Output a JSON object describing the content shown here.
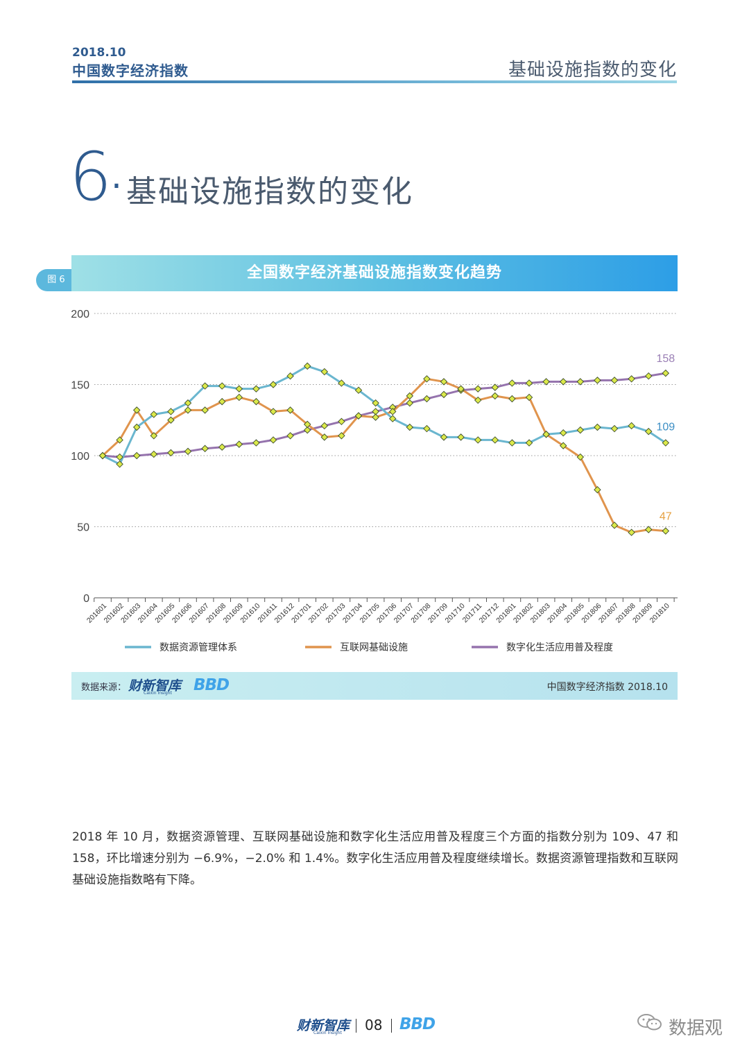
{
  "header": {
    "date": "2018.10",
    "brand": "中国数字经济指数",
    "section_title": "基础设施指数的变化"
  },
  "section": {
    "number": "6",
    "dot": ".",
    "title": "基础设施指数的变化"
  },
  "figure": {
    "tag": "图 6",
    "title": "全国数字经济基础设施指数变化趋势"
  },
  "chart_data": {
    "type": "line",
    "title": "全国数字经济基础设施指数变化趋势",
    "xlabel": "",
    "ylabel": "",
    "ylim": [
      0,
      200
    ],
    "yticks": [
      "0",
      "50",
      "100",
      "150",
      "200"
    ],
    "grid": "horizontal dotted",
    "categories": [
      "201601",
      "201602",
      "201603",
      "201604",
      "201605",
      "201606",
      "201607",
      "201608",
      "201609",
      "201610",
      "201611",
      "201612",
      "201701",
      "201702",
      "201703",
      "201704",
      "201705",
      "201706",
      "201707",
      "201708",
      "201709",
      "201710",
      "201711",
      "201712",
      "201801",
      "201802",
      "201803",
      "201804",
      "201805",
      "201806",
      "201807",
      "201808",
      "201809",
      "201810"
    ],
    "series": [
      {
        "name": "数据资源管理体系",
        "color": "#6ab6cf",
        "values": [
          100,
          94,
          120,
          129,
          131,
          137,
          149,
          149,
          147,
          147,
          150,
          156,
          163,
          159,
          151,
          146,
          137,
          126,
          120,
          119,
          113,
          113,
          111,
          111,
          109,
          109,
          115,
          116,
          118,
          120,
          119,
          121,
          117,
          109
        ],
        "end_label": "109",
        "end_label_color": "#3d8fc5"
      },
      {
        "name": "互联网基础设施",
        "color": "#e0944d",
        "values": [
          100,
          111,
          132,
          114,
          125,
          132,
          132,
          138,
          141,
          138,
          131,
          132,
          122,
          113,
          114,
          128,
          127,
          131,
          142,
          154,
          152,
          147,
          139,
          142,
          140,
          141,
          115,
          107,
          99,
          76,
          51,
          46,
          48,
          47
        ],
        "end_label": "47",
        "end_label_color": "#e6a040"
      },
      {
        "name": "数字化生活应用普及程度",
        "color": "#9573ad",
        "values": [
          100,
          99,
          100,
          101,
          102,
          103,
          105,
          106,
          108,
          109,
          111,
          114,
          118,
          121,
          124,
          128,
          131,
          134,
          137,
          140,
          143,
          146,
          147,
          148,
          151,
          151,
          152,
          152,
          152,
          153,
          153,
          154,
          156,
          158
        ],
        "end_label": "158",
        "end_label_color": "#9a7fb5"
      }
    ],
    "marker_color": "#dbe94a",
    "legend_position": "bottom"
  },
  "source": {
    "label": "数据来源：",
    "logo_text": "财新智库",
    "logo_sub": "Caixin Insight",
    "bbd_logo": "BBD",
    "right_text": "中国数字经济指数 2018.10"
  },
  "paragraph": "2018 年 10 月，数据资源管理、互联网基础设施和数字化生活应用普及程度三个方面的指数分别为 109、47 和 158，环比增速分别为 −6.9%，−2.0% 和 1.4%。数字化生活应用普及程度继续增长。数据资源管理指数和互联网基础设施指数略有下降。",
  "footer": {
    "logo_text": "财新智库",
    "logo_sub": "Caixin Insight",
    "page": "08",
    "bbd_logo": "BBD"
  },
  "watermark": {
    "icon": "wechat-icon",
    "text": "数据观"
  }
}
